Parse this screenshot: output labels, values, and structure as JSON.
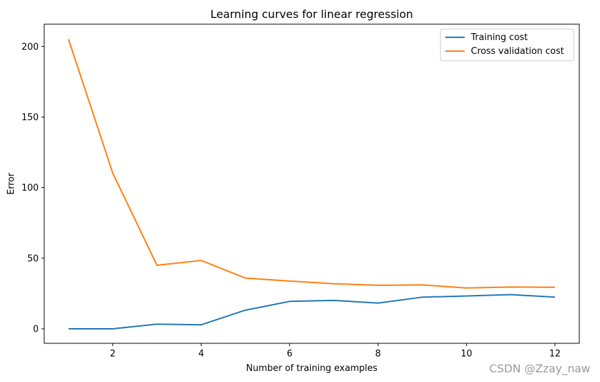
{
  "chart_data": {
    "type": "line",
    "title": "Learning curves for linear regression",
    "xlabel": "Number of training examples",
    "ylabel": "Error",
    "xlim": [
      0.45,
      12.55
    ],
    "ylim": [
      -10.3,
      215.8
    ],
    "xticks": [
      2,
      4,
      6,
      8,
      10,
      12
    ],
    "yticks": [
      0,
      50,
      100,
      150,
      200
    ],
    "grid": false,
    "legend_position": "top-right",
    "x": [
      1,
      2,
      3,
      4,
      5,
      6,
      7,
      8,
      9,
      10,
      11,
      12
    ],
    "series": [
      {
        "name": "Training cost",
        "color": "#1f77b4",
        "values": [
          0.0,
          0.0,
          3.3,
          2.8,
          13.2,
          19.4,
          20.1,
          18.2,
          22.4,
          23.2,
          24.2,
          22.4
        ]
      },
      {
        "name": "Cross validation cost",
        "color": "#ff7f0e",
        "values": [
          205.1,
          110.3,
          45.0,
          48.4,
          35.9,
          33.8,
          31.9,
          30.8,
          31.1,
          28.9,
          29.6,
          29.4
        ]
      }
    ]
  },
  "watermark": "CSDN @Zzay_naw"
}
